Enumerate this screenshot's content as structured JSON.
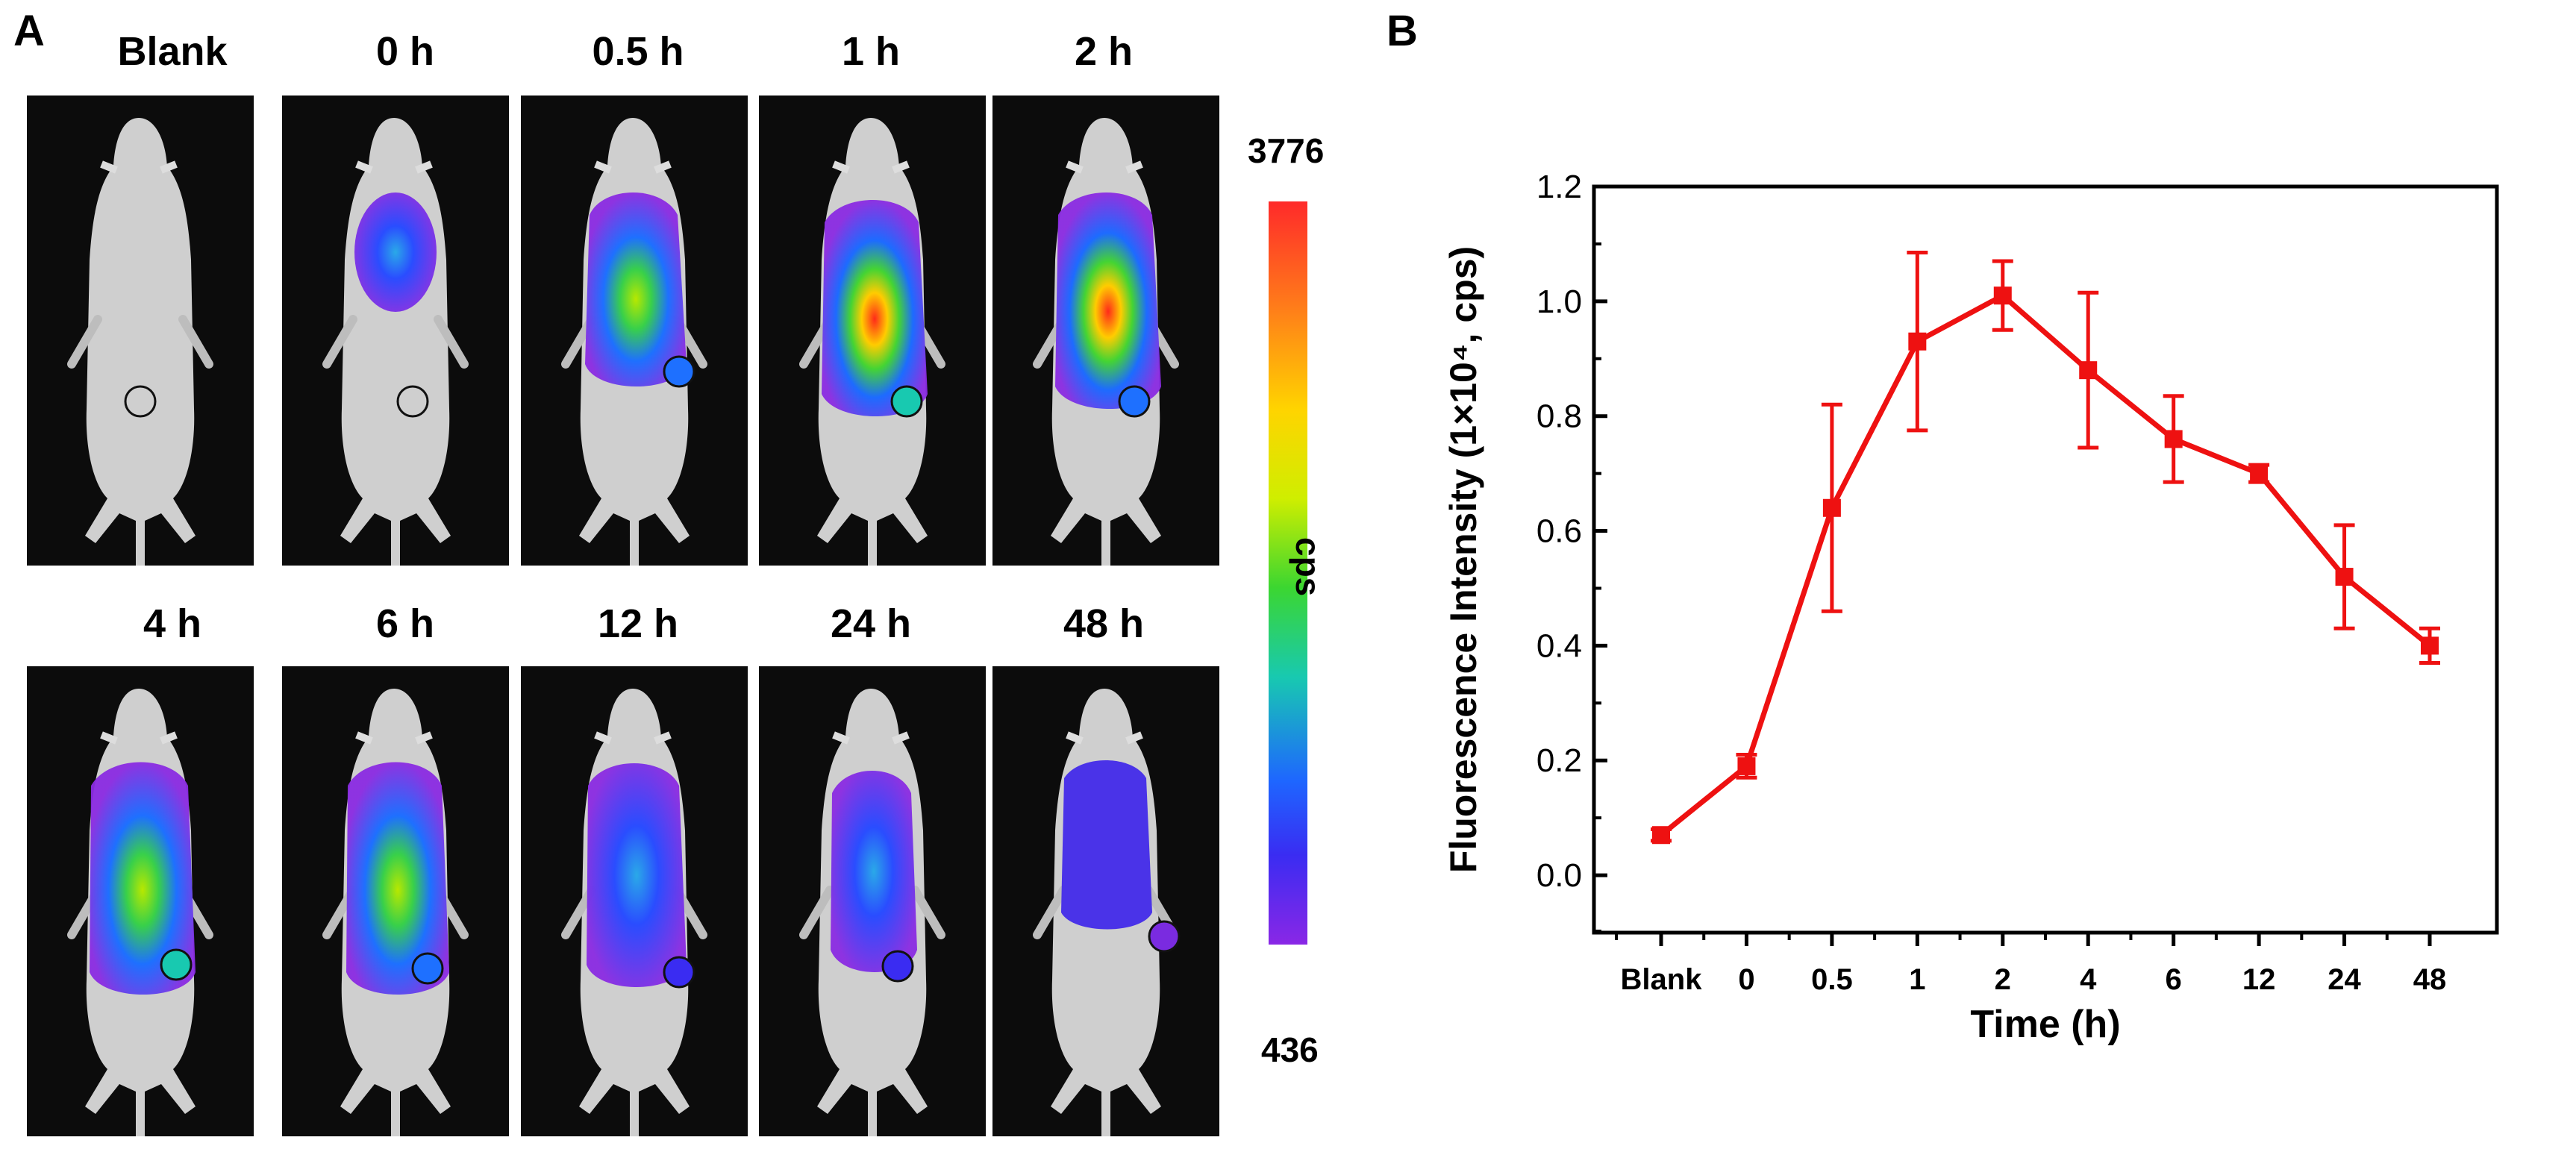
{
  "panel_a": {
    "letter": "A",
    "timepoints": [
      "Blank",
      "0 h",
      "0.5 h",
      "1 h",
      "2 h",
      "4 h",
      "6 h",
      "12 h",
      "24 h",
      "48 h"
    ],
    "colorbar": {
      "max_label": "3776",
      "min_label": "436",
      "unit_label": "cps"
    }
  },
  "panel_b": {
    "letter": "B"
  },
  "colors": {
    "line": "#ee1111",
    "image_bg": "#0c0c0c"
  },
  "chart_data": {
    "type": "line",
    "title": "",
    "xlabel": "Time (h)",
    "ylabel": "Fluorescence Intensity (1×10⁴, cps)",
    "categories": [
      "Blank",
      "0",
      "0.5",
      "1",
      "2",
      "4",
      "6",
      "12",
      "24",
      "48"
    ],
    "values": [
      0.07,
      0.19,
      0.64,
      0.93,
      1.01,
      0.88,
      0.76,
      0.7,
      0.52,
      0.4
    ],
    "errors": [
      0.01,
      0.02,
      0.18,
      0.155,
      0.06,
      0.135,
      0.075,
      0.015,
      0.09,
      0.03
    ],
    "ylim": [
      -0.1,
      1.2
    ],
    "yticks": [
      "0.0",
      "0.2",
      "0.4",
      "0.6",
      "0.8",
      "1.0",
      "1.2"
    ],
    "ytick_values": [
      0.0,
      0.2,
      0.4,
      0.6,
      0.8,
      1.0,
      1.2
    ],
    "grid": false,
    "legend": "none"
  }
}
